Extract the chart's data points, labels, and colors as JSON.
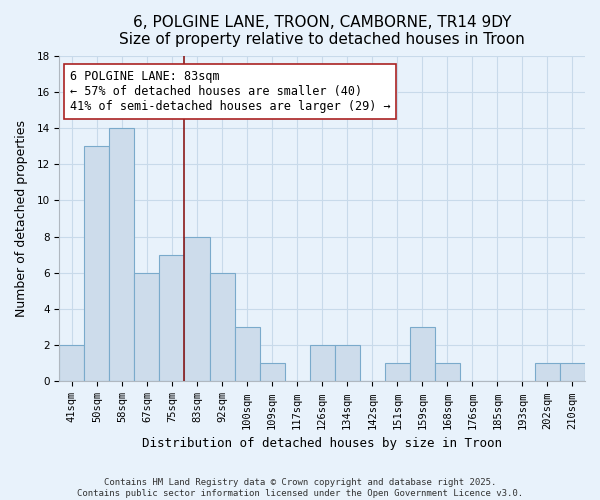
{
  "title": "6, POLGINE LANE, TROON, CAMBORNE, TR14 9DY",
  "subtitle": "Size of property relative to detached houses in Troon",
  "xlabel": "Distribution of detached houses by size in Troon",
  "ylabel": "Number of detached properties",
  "categories": [
    "41sqm",
    "50sqm",
    "58sqm",
    "67sqm",
    "75sqm",
    "83sqm",
    "92sqm",
    "100sqm",
    "109sqm",
    "117sqm",
    "126sqm",
    "134sqm",
    "142sqm",
    "151sqm",
    "159sqm",
    "168sqm",
    "176sqm",
    "185sqm",
    "193sqm",
    "202sqm",
    "210sqm"
  ],
  "values": [
    2,
    13,
    14,
    6,
    7,
    8,
    6,
    3,
    1,
    0,
    2,
    2,
    0,
    1,
    3,
    1,
    0,
    0,
    0,
    1,
    1
  ],
  "bar_color": "#cddceb",
  "bar_edge_color": "#7aaacb",
  "highlight_index": 5,
  "highlight_line_color": "#8b1a1a",
  "annotation_line1": "6 POLGINE LANE: 83sqm",
  "annotation_line2": "← 57% of detached houses are smaller (40)",
  "annotation_line3": "41% of semi-detached houses are larger (29) →",
  "annotation_box_color": "#ffffff",
  "annotation_box_edge": "#aa2222",
  "ylim": [
    0,
    18
  ],
  "yticks": [
    0,
    2,
    4,
    6,
    8,
    10,
    12,
    14,
    16,
    18
  ],
  "grid_color": "#c8daea",
  "background_color": "#e8f2fb",
  "footer_text": "Contains HM Land Registry data © Crown copyright and database right 2025.\nContains public sector information licensed under the Open Government Licence v3.0.",
  "title_fontsize": 11,
  "subtitle_fontsize": 10,
  "xlabel_fontsize": 9,
  "ylabel_fontsize": 9,
  "tick_fontsize": 7.5,
  "annotation_fontsize": 8.5,
  "footer_fontsize": 6.5
}
